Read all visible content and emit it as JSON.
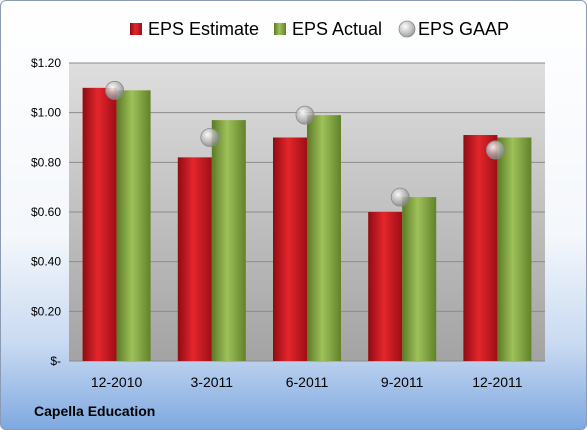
{
  "chart_data": {
    "type": "bar",
    "categories": [
      "12-2010",
      "3-2011",
      "6-2011",
      "9-2011",
      "12-2011"
    ],
    "series": [
      {
        "name": "EPS Estimate",
        "kind": "bar",
        "values": [
          1.1,
          0.82,
          0.9,
          0.6,
          0.91
        ]
      },
      {
        "name": "EPS Actual",
        "kind": "bar",
        "values": [
          1.09,
          0.97,
          0.99,
          0.66,
          0.9
        ]
      },
      {
        "name": "EPS GAAP",
        "kind": "scatter",
        "values": [
          1.09,
          0.9,
          0.99,
          0.66,
          0.85
        ]
      }
    ],
    "ylim": [
      0,
      1.2
    ],
    "yticks": [
      0,
      0.2,
      0.4,
      0.6,
      0.8,
      1.0,
      1.2
    ],
    "ytick_labels": [
      "$-",
      "$0.20",
      "$0.40",
      "$0.60",
      "$0.80",
      "$1.00",
      "$1.20"
    ],
    "grid": true,
    "legend_position": "top",
    "colors": {
      "estimate": "#c0141c",
      "actual": "#7fa23a",
      "gaap": "#b8b8b8"
    }
  },
  "company_label": "Capella Education"
}
